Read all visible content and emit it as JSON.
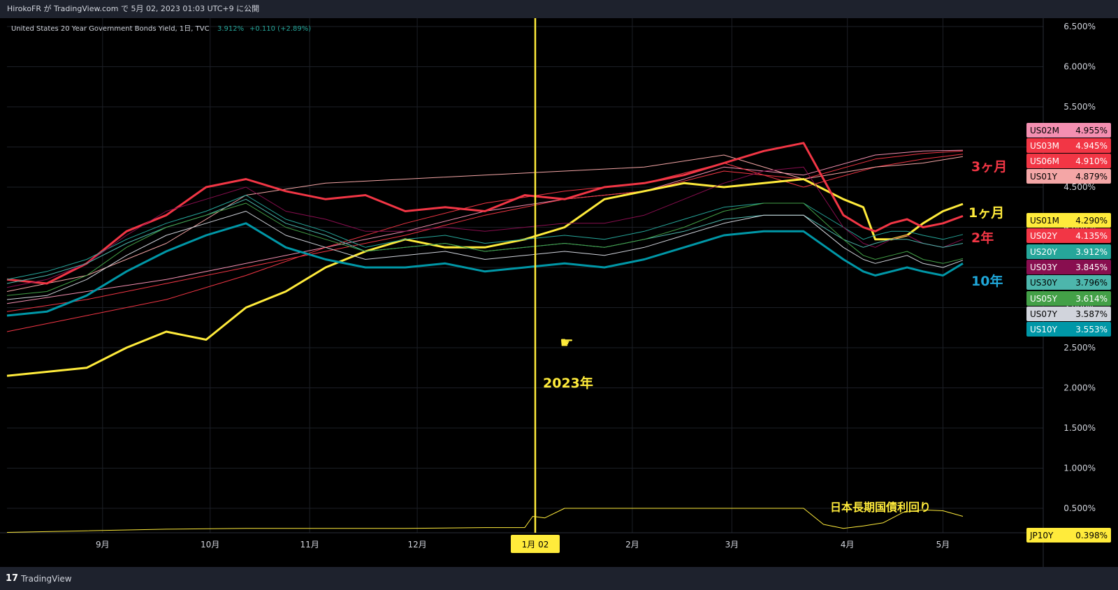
{
  "topbar": {
    "text": "HirokoFR が TradingView.com で 5月 02, 2023 01:03 UTC+9 に公開"
  },
  "bottombar": {
    "logo_text": "TradingView"
  },
  "legend": {
    "title": "United States 20 Year Government Bonds Yield, 1日, TVC",
    "value": "3.912%",
    "change": "+0.110 (+2.89%)"
  },
  "colors": {
    "background": "#000000",
    "grid": "#1c1f26",
    "axis_text": "#d1d4dc",
    "yellow": "#ffeb3b",
    "red": "#f23645",
    "teal": "#0097a7"
  },
  "chart_data": {
    "type": "line",
    "title": "United States 20 Year Government Bonds Yield, 1日, TVC",
    "xlabel": "",
    "ylabel": "",
    "x_ticks": [
      "9月",
      "10月",
      "11月",
      "12月",
      "1月 02",
      "2月",
      "3月",
      "4月",
      "5月"
    ],
    "y_ticks": [
      "0.500%",
      "1.000%",
      "1.500%",
      "2.000%",
      "2.500%",
      "3.000%",
      "3.500%",
      "4.000%",
      "4.500%",
      "5.000%",
      "5.500%",
      "6.000%",
      "6.500%"
    ],
    "ylim": [
      0,
      6.6
    ],
    "grid": true,
    "annotations": [
      {
        "text": "3ヶ月",
        "color": "#f23645"
      },
      {
        "text": "1ヶ月",
        "color": "#ffeb3b"
      },
      {
        "text": "2年",
        "color": "#f23645"
      },
      {
        "text": "10年",
        "color": "#1fa6d8"
      },
      {
        "text": "2023年",
        "color": "#ffeb3b"
      },
      {
        "text": "日本長期国債利回り",
        "color": "#ffeb3b"
      }
    ],
    "series": [
      {
        "name": "US02M",
        "value_label": "4.955%",
        "color": "#f48fb1",
        "text_color": "#000000",
        "thick": false,
        "dx": [
          0,
          20,
          40,
          60,
          80,
          100,
          120,
          140,
          160,
          180,
          200,
          218,
          230,
          240
        ],
        "values": [
          3.05,
          3.2,
          3.35,
          3.55,
          3.75,
          3.95,
          4.2,
          4.35,
          4.45,
          4.75,
          4.65,
          4.9,
          4.95,
          4.96
        ]
      },
      {
        "name": "US03M",
        "value_label": "4.945%",
        "color": "#f23645",
        "text_color": "#ffffff",
        "thick": false,
        "dx": [
          0,
          20,
          40,
          60,
          80,
          100,
          120,
          140,
          160,
          180,
          200,
          218,
          230,
          240
        ],
        "values": [
          2.95,
          3.1,
          3.3,
          3.5,
          3.7,
          3.9,
          4.15,
          4.35,
          4.45,
          4.7,
          4.6,
          4.85,
          4.92,
          4.95
        ]
      },
      {
        "name": "US06M",
        "value_label": "4.910%",
        "color": "#f23645",
        "text_color": "#ffffff",
        "thick": false,
        "dx": [
          0,
          20,
          40,
          60,
          80,
          100,
          120,
          140,
          160,
          180,
          200,
          218,
          230,
          240
        ],
        "values": [
          2.7,
          2.9,
          3.1,
          3.4,
          3.75,
          4.05,
          4.3,
          4.45,
          4.55,
          4.8,
          4.5,
          4.75,
          4.85,
          4.91
        ]
      },
      {
        "name": "US01Y",
        "value_label": "4.879%",
        "color": "#f4a6a6",
        "text_color": "#000000",
        "thick": false,
        "dx": [
          0,
          20,
          40,
          60,
          80,
          100,
          120,
          140,
          160,
          180,
          200,
          218,
          230,
          240
        ],
        "values": [
          3.2,
          3.4,
          3.8,
          4.4,
          4.55,
          4.6,
          4.65,
          4.7,
          4.75,
          4.9,
          4.6,
          4.75,
          4.8,
          4.88
        ]
      },
      {
        "name": "US01M",
        "value_label": "4.290%",
        "color": "#ffeb3b",
        "text_color": "#000000",
        "thick": true,
        "dx": [
          0,
          10,
          20,
          30,
          40,
          50,
          60,
          70,
          80,
          90,
          100,
          110,
          120,
          130,
          140,
          150,
          160,
          170,
          180,
          190,
          200,
          210,
          215,
          218,
          222,
          226,
          230,
          235,
          240
        ],
        "values": [
          2.15,
          2.2,
          2.25,
          2.5,
          2.7,
          2.6,
          3.0,
          3.2,
          3.5,
          3.7,
          3.85,
          3.75,
          3.75,
          3.85,
          4.0,
          4.35,
          4.45,
          4.55,
          4.5,
          4.55,
          4.6,
          4.35,
          4.25,
          3.85,
          3.85,
          3.9,
          4.05,
          4.2,
          4.29
        ]
      },
      {
        "name": "US02Y",
        "value_label": "4.135%",
        "color": "#f23645",
        "text_color": "#ffffff",
        "thick": true,
        "dx": [
          0,
          10,
          20,
          30,
          40,
          50,
          60,
          70,
          80,
          90,
          100,
          110,
          120,
          130,
          140,
          150,
          160,
          170,
          180,
          190,
          200,
          210,
          215,
          218,
          222,
          226,
          230,
          235,
          240
        ],
        "values": [
          3.35,
          3.3,
          3.55,
          3.95,
          4.15,
          4.5,
          4.6,
          4.45,
          4.35,
          4.4,
          4.2,
          4.25,
          4.2,
          4.4,
          4.35,
          4.5,
          4.55,
          4.65,
          4.8,
          4.95,
          5.05,
          4.15,
          4.0,
          3.95,
          4.05,
          4.1,
          4.0,
          4.05,
          4.14
        ]
      },
      {
        "name": "US20Y",
        "value_label": "3.912%",
        "color": "#26a69a",
        "text_color": "#ffffff",
        "thick": false,
        "dx": [
          0,
          10,
          20,
          30,
          40,
          50,
          60,
          70,
          80,
          90,
          100,
          110,
          120,
          130,
          140,
          150,
          160,
          170,
          180,
          190,
          200,
          210,
          215,
          218,
          222,
          226,
          230,
          235,
          240
        ],
        "values": [
          3.35,
          3.45,
          3.6,
          3.85,
          4.05,
          4.2,
          4.4,
          4.1,
          3.95,
          3.75,
          3.85,
          3.9,
          3.8,
          3.85,
          3.9,
          3.85,
          3.95,
          4.1,
          4.25,
          4.3,
          4.3,
          4.0,
          3.85,
          3.9,
          3.95,
          3.95,
          3.9,
          3.85,
          3.91
        ]
      },
      {
        "name": "US03Y",
        "value_label": "3.845%",
        "color": "#880e4f",
        "text_color": "#ffffff",
        "thick": false,
        "dx": [
          0,
          10,
          20,
          30,
          40,
          50,
          60,
          70,
          80,
          90,
          100,
          110,
          120,
          130,
          140,
          150,
          160,
          170,
          180,
          190,
          200,
          210,
          215,
          218,
          222,
          226,
          230,
          235,
          240
        ],
        "values": [
          3.25,
          3.35,
          3.55,
          3.9,
          4.2,
          4.35,
          4.5,
          4.2,
          4.1,
          3.95,
          3.95,
          4.0,
          3.95,
          4.0,
          4.05,
          4.05,
          4.15,
          4.35,
          4.55,
          4.7,
          4.75,
          4.0,
          3.8,
          3.75,
          3.85,
          3.9,
          3.8,
          3.75,
          3.85
        ]
      },
      {
        "name": "US30Y",
        "value_label": "3.796%",
        "color": "#4db6ac",
        "text_color": "#000000",
        "thick": false,
        "dx": [
          0,
          10,
          20,
          30,
          40,
          50,
          60,
          70,
          80,
          90,
          100,
          110,
          120,
          130,
          140,
          150,
          160,
          170,
          180,
          190,
          200,
          210,
          215,
          218,
          222,
          226,
          230,
          235,
          240
        ],
        "values": [
          3.3,
          3.4,
          3.55,
          3.8,
          4.0,
          4.15,
          4.35,
          4.05,
          3.9,
          3.7,
          3.75,
          3.8,
          3.7,
          3.75,
          3.8,
          3.75,
          3.85,
          3.95,
          4.1,
          4.15,
          4.15,
          3.85,
          3.75,
          3.8,
          3.85,
          3.85,
          3.8,
          3.75,
          3.8
        ]
      },
      {
        "name": "US05Y",
        "value_label": "3.614%",
        "color": "#43a047",
        "text_color": "#ffffff",
        "thick": false,
        "dx": [
          0,
          10,
          20,
          30,
          40,
          50,
          60,
          70,
          80,
          90,
          100,
          110,
          120,
          130,
          140,
          150,
          160,
          170,
          180,
          190,
          200,
          210,
          215,
          218,
          222,
          226,
          230,
          235,
          240
        ],
        "values": [
          3.15,
          3.2,
          3.4,
          3.75,
          4.0,
          4.15,
          4.3,
          4.0,
          3.85,
          3.7,
          3.75,
          3.8,
          3.7,
          3.75,
          3.8,
          3.75,
          3.85,
          4.0,
          4.2,
          4.3,
          4.3,
          3.85,
          3.65,
          3.6,
          3.65,
          3.7,
          3.6,
          3.55,
          3.61
        ]
      },
      {
        "name": "US07Y",
        "value_label": "3.587%",
        "color": "#d1d4dc",
        "text_color": "#000000",
        "thick": false,
        "dx": [
          0,
          10,
          20,
          30,
          40,
          50,
          60,
          70,
          80,
          90,
          100,
          110,
          120,
          130,
          140,
          150,
          160,
          170,
          180,
          190,
          200,
          210,
          215,
          218,
          222,
          226,
          230,
          235,
          240
        ],
        "values": [
          3.1,
          3.15,
          3.35,
          3.65,
          3.9,
          4.05,
          4.2,
          3.9,
          3.75,
          3.6,
          3.65,
          3.7,
          3.6,
          3.65,
          3.7,
          3.65,
          3.75,
          3.9,
          4.05,
          4.15,
          4.15,
          3.75,
          3.6,
          3.55,
          3.6,
          3.65,
          3.55,
          3.5,
          3.59
        ]
      },
      {
        "name": "US10Y",
        "value_label": "3.553%",
        "color": "#0097a7",
        "text_color": "#ffffff",
        "thick": true,
        "dx": [
          0,
          10,
          20,
          30,
          40,
          50,
          60,
          70,
          80,
          90,
          100,
          110,
          120,
          130,
          140,
          150,
          160,
          170,
          180,
          190,
          200,
          210,
          215,
          218,
          222,
          226,
          230,
          235,
          240
        ],
        "values": [
          2.9,
          2.95,
          3.15,
          3.45,
          3.7,
          3.9,
          4.05,
          3.75,
          3.6,
          3.5,
          3.5,
          3.55,
          3.45,
          3.5,
          3.55,
          3.5,
          3.6,
          3.75,
          3.9,
          3.95,
          3.95,
          3.6,
          3.45,
          3.4,
          3.45,
          3.5,
          3.45,
          3.4,
          3.55
        ]
      },
      {
        "name": "JP10Y",
        "value_label": "0.398%",
        "color": "#ffeb3b",
        "text_color": "#000000",
        "thick": false,
        "dx": [
          0,
          20,
          40,
          60,
          80,
          100,
          120,
          130,
          132,
          135,
          140,
          150,
          160,
          170,
          180,
          190,
          200,
          205,
          210,
          215,
          220,
          225,
          230,
          235,
          240
        ],
        "values": [
          0.2,
          0.22,
          0.24,
          0.25,
          0.25,
          0.25,
          0.26,
          0.26,
          0.4,
          0.38,
          0.5,
          0.5,
          0.5,
          0.5,
          0.5,
          0.5,
          0.5,
          0.3,
          0.25,
          0.28,
          0.32,
          0.45,
          0.48,
          0.47,
          0.4
        ]
      }
    ]
  }
}
